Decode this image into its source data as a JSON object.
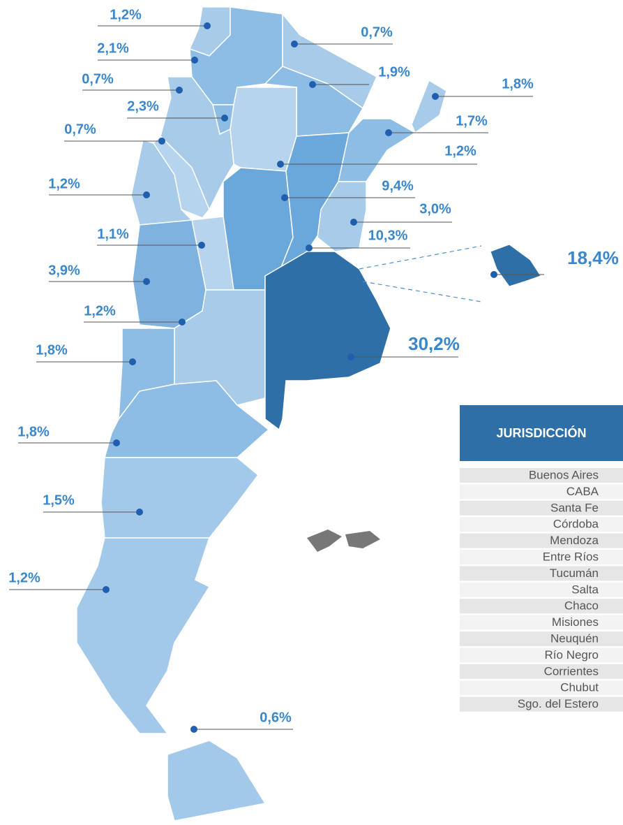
{
  "labels": [
    {
      "text": "1,2%"
    },
    {
      "text": "2,1%"
    },
    {
      "text": "0,7%"
    },
    {
      "text": "2,3%"
    },
    {
      "text": "0,7%"
    },
    {
      "text": "1,2%"
    },
    {
      "text": "1,1%"
    },
    {
      "text": "3,9%"
    },
    {
      "text": "1,2%"
    },
    {
      "text": "1,8%"
    },
    {
      "text": "1,8%"
    },
    {
      "text": "1,5%"
    },
    {
      "text": "1,2%"
    },
    {
      "text": "0,6%"
    },
    {
      "text": "0,7%"
    },
    {
      "text": "1,9%"
    },
    {
      "text": "1,8%"
    },
    {
      "text": "1,7%"
    },
    {
      "text": "1,2%"
    },
    {
      "text": "9,4%"
    },
    {
      "text": "3,0%"
    },
    {
      "text": "10,3%"
    },
    {
      "text": "18,4%"
    },
    {
      "text": "30,2%"
    }
  ],
  "table": {
    "header": "JURISDICCIÓN",
    "rows": [
      "Buenos Aires",
      "CABA",
      "Santa Fe",
      "Córdoba",
      "Mendoza",
      "Entre Ríos",
      "Tucumán",
      "Salta",
      "Chaco",
      "Misiones",
      "Neuquén",
      "Río Negro",
      "Corrientes",
      "Chubut",
      "Sgo. del Estero"
    ]
  }
}
